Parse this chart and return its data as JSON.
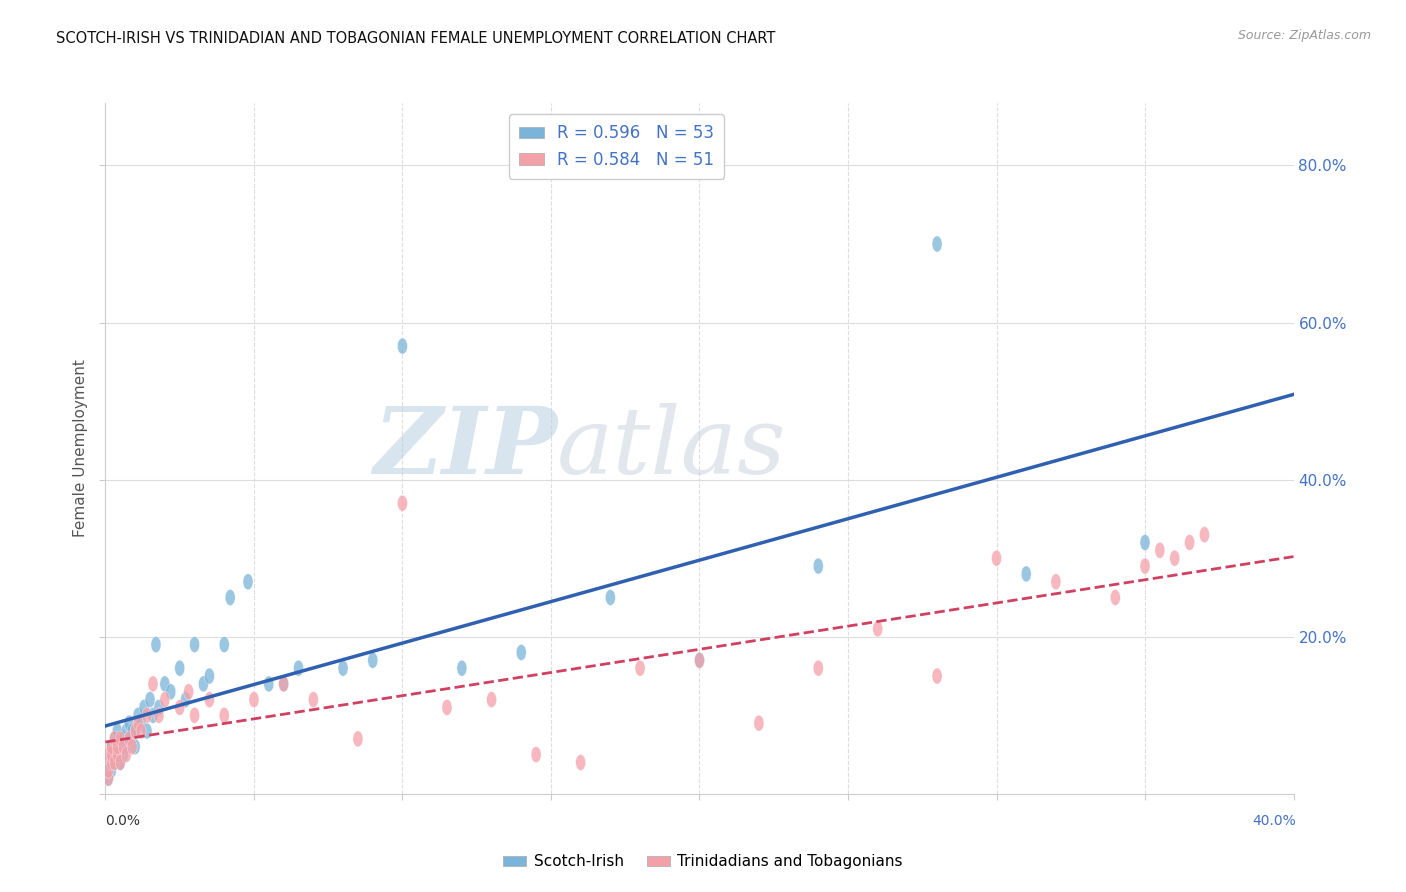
{
  "title": "SCOTCH-IRISH VS TRINIDADIAN AND TOBAGONIAN FEMALE UNEMPLOYMENT CORRELATION CHART",
  "source": "Source: ZipAtlas.com",
  "ylabel": "Female Unemployment",
  "legend1_label": "R = 0.596   N = 53",
  "legend2_label": "R = 0.584   N = 51",
  "scotch_irish_color": "#7ab4d8",
  "trini_color": "#f4a0a8",
  "line1_color": "#3060b0",
  "line2_color": "#d04060",
  "watermark_zip": "ZIP",
  "watermark_atlas": "atlas",
  "scotch_irish_x": [
    0.001,
    0.001,
    0.001,
    0.002,
    0.002,
    0.002,
    0.003,
    0.003,
    0.004,
    0.004,
    0.005,
    0.005,
    0.006,
    0.006,
    0.007,
    0.007,
    0.008,
    0.008,
    0.009,
    0.01,
    0.01,
    0.011,
    0.012,
    0.013,
    0.014,
    0.015,
    0.016,
    0.017,
    0.018,
    0.02,
    0.022,
    0.025,
    0.027,
    0.03,
    0.033,
    0.035,
    0.04,
    0.042,
    0.048,
    0.055,
    0.06,
    0.065,
    0.08,
    0.09,
    0.1,
    0.12,
    0.14,
    0.17,
    0.2,
    0.24,
    0.28,
    0.31,
    0.35
  ],
  "scotch_irish_y": [
    0.02,
    0.03,
    0.04,
    0.03,
    0.05,
    0.06,
    0.04,
    0.07,
    0.05,
    0.08,
    0.04,
    0.06,
    0.05,
    0.07,
    0.06,
    0.08,
    0.07,
    0.09,
    0.08,
    0.06,
    0.08,
    0.1,
    0.09,
    0.11,
    0.08,
    0.12,
    0.1,
    0.19,
    0.11,
    0.14,
    0.13,
    0.16,
    0.12,
    0.19,
    0.14,
    0.15,
    0.19,
    0.25,
    0.27,
    0.14,
    0.14,
    0.16,
    0.16,
    0.17,
    0.57,
    0.16,
    0.18,
    0.25,
    0.17,
    0.29,
    0.7,
    0.28,
    0.32
  ],
  "trini_x": [
    0.001,
    0.001,
    0.001,
    0.002,
    0.002,
    0.002,
    0.003,
    0.003,
    0.004,
    0.004,
    0.005,
    0.005,
    0.006,
    0.007,
    0.008,
    0.009,
    0.01,
    0.011,
    0.012,
    0.014,
    0.016,
    0.018,
    0.02,
    0.025,
    0.028,
    0.03,
    0.035,
    0.04,
    0.05,
    0.06,
    0.07,
    0.085,
    0.1,
    0.115,
    0.13,
    0.145,
    0.16,
    0.18,
    0.2,
    0.22,
    0.24,
    0.26,
    0.28,
    0.3,
    0.32,
    0.34,
    0.35,
    0.355,
    0.36,
    0.365,
    0.37
  ],
  "trini_y": [
    0.02,
    0.03,
    0.05,
    0.04,
    0.05,
    0.06,
    0.04,
    0.07,
    0.05,
    0.06,
    0.04,
    0.07,
    0.06,
    0.05,
    0.07,
    0.06,
    0.08,
    0.09,
    0.08,
    0.1,
    0.14,
    0.1,
    0.12,
    0.11,
    0.13,
    0.1,
    0.12,
    0.1,
    0.12,
    0.14,
    0.12,
    0.07,
    0.37,
    0.11,
    0.12,
    0.05,
    0.04,
    0.16,
    0.17,
    0.09,
    0.16,
    0.21,
    0.15,
    0.3,
    0.27,
    0.25,
    0.29,
    0.31,
    0.3,
    0.32,
    0.33
  ],
  "xlim": [
    0.0,
    0.4
  ],
  "ylim": [
    0.0,
    0.88
  ],
  "xticks": [
    0.0,
    0.05,
    0.1,
    0.15,
    0.2,
    0.25,
    0.3,
    0.35,
    0.4
  ],
  "yticks": [
    0.0,
    0.2,
    0.4,
    0.6,
    0.8
  ],
  "ytick_labels": [
    "",
    "20.0%",
    "40.0%",
    "60.0%",
    "80.0%"
  ]
}
